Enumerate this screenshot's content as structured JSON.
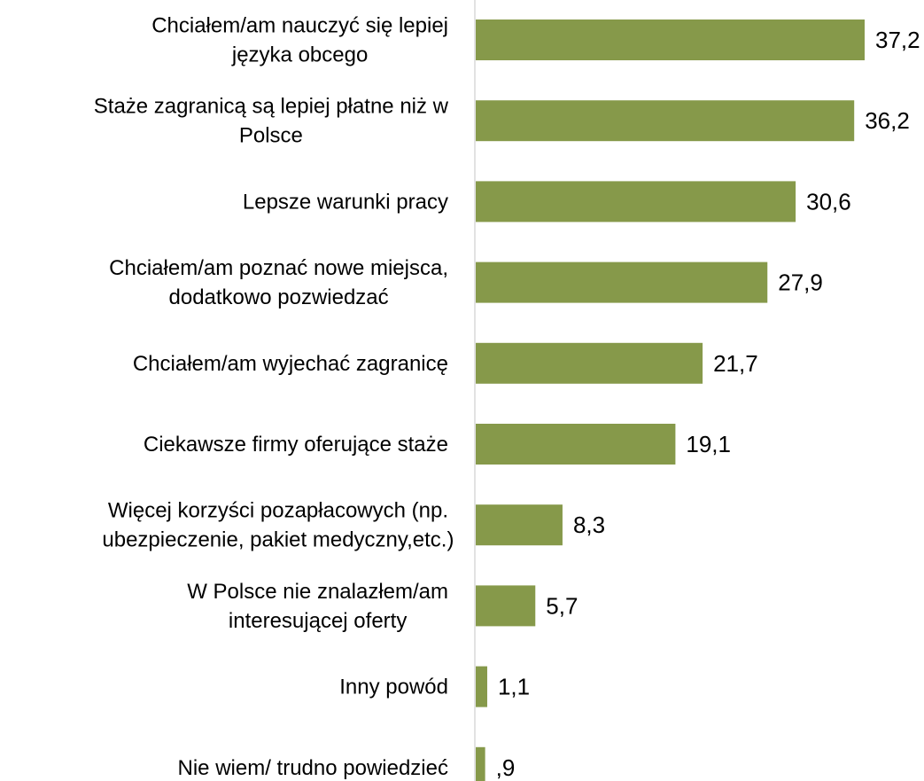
{
  "chart_data": {
    "type": "bar",
    "orientation": "horizontal",
    "categories": [
      [
        "Chciałem/am nauczyć się lepiej",
        "języka obcego"
      ],
      [
        "Staże zagranicą są lepiej płatne niż w",
        "Polsce"
      ],
      [
        "Lepsze warunki pracy"
      ],
      [
        "Chciałem/am poznać nowe miejsca,",
        "dodatkowo pozwiedzać"
      ],
      [
        "Chciałem/am wyjechać zagranicę"
      ],
      [
        "Ciekawsze firmy oferujące staże"
      ],
      [
        "Więcej korzyści pozapłacowych (np.",
        "ubezpieczenie, pakiet medyczny,etc.)"
      ],
      [
        "W Polsce nie znalazłem/am",
        "interesującej oferty"
      ],
      [
        "Inny powód"
      ],
      [
        "Nie wiem/ trudno powiedzieć"
      ]
    ],
    "values": [
      37.2,
      36.2,
      30.6,
      27.9,
      21.7,
      19.1,
      8.3,
      5.7,
      1.1,
      0.9
    ],
    "value_labels": [
      "37,2",
      "36,2",
      "30,6",
      "27,9",
      "21,7",
      "19,1",
      "8,3",
      "5,7",
      "1,1",
      ",9"
    ],
    "bar_color": "#86994A",
    "axis_color": "#D9D9D9",
    "xlim": [
      0,
      37.2
    ],
    "grid": false,
    "legend": "none",
    "title": "",
    "xlabel": "",
    "ylabel": ""
  }
}
